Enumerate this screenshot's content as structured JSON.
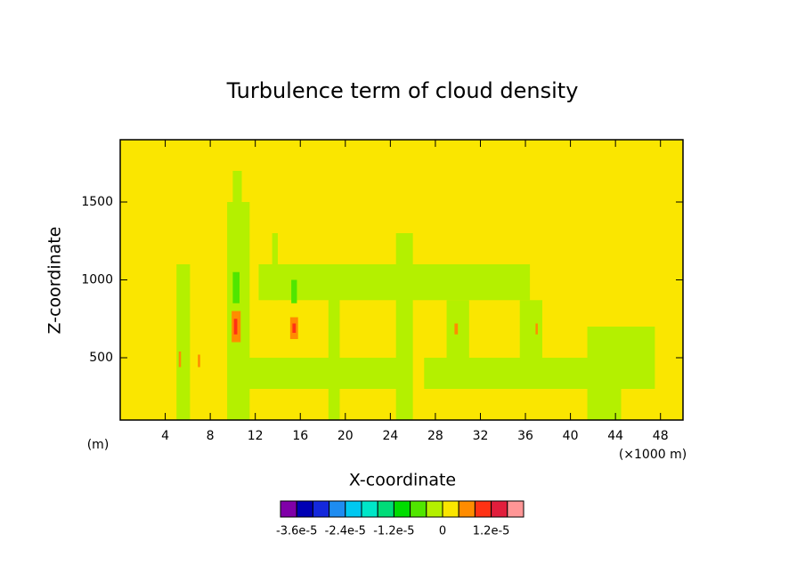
{
  "chart_data": {
    "type": "contour",
    "title": "Turbulence term of cloud density",
    "x_label": "X-coordinate",
    "y_label": "Z-coordinate",
    "y_unit": "(m)",
    "x_unit": "(×1000 m)",
    "xlim": [
      0,
      50
    ],
    "xticks": [
      4,
      8,
      12,
      16,
      20,
      24,
      28,
      32,
      36,
      40,
      44,
      48
    ],
    "ylim": [
      100,
      1900
    ],
    "yticks": [
      500,
      1000,
      1500
    ],
    "background_value": 2e-06,
    "levels": [
      -3.6e-05,
      -3.2e-05,
      -2.8e-05,
      -2.4e-05,
      -2e-05,
      -1.6e-05,
      -1.2e-05,
      -8e-06,
      -4e-06,
      0,
      4e-06,
      8e-06,
      1.2e-05,
      1.6e-05
    ],
    "level_labels": [
      {
        "value": -3.6e-05,
        "label": "-3.6e-5"
      },
      {
        "value": -2.4e-05,
        "label": "-2.4e-5"
      },
      {
        "value": -1.2e-05,
        "label": "-1.2e-5"
      },
      0,
      {
        "value": 1.2e-05,
        "label": "1.2e-5"
      }
    ],
    "colors": [
      "#8000a8",
      "#0000b4",
      "#1428dc",
      "#1e8cf0",
      "#00c8f0",
      "#00e6c8",
      "#00dc78",
      "#00dc00",
      "#50e600",
      "#b4f000",
      "#fae600",
      "#ff8c00",
      "#ff3214",
      "#e11e3c",
      "#ff9696"
    ],
    "patches": [
      {
        "x": [
          11,
          25
        ],
        "z": [
          300,
          500
        ],
        "value": -2e-06
      },
      {
        "x": [
          27,
          47.5
        ],
        "z": [
          300,
          500
        ],
        "value": -2e-06
      },
      {
        "x": [
          12.3,
          36.4
        ],
        "z": [
          870,
          1100
        ],
        "value": -2e-06
      },
      {
        "x": [
          5,
          6.2
        ],
        "z": [
          100,
          1100
        ],
        "value": -2e-06
      },
      {
        "x": [
          9.5,
          11.5
        ],
        "z": [
          100,
          1500
        ],
        "value": -2e-06
      },
      {
        "x": [
          10,
          10.8
        ],
        "z": [
          1500,
          1700
        ],
        "value": -2e-06
      },
      {
        "x": [
          13.5,
          14
        ],
        "z": [
          870,
          1300
        ],
        "value": -2e-06
      },
      {
        "x": [
          18.5,
          19.5
        ],
        "z": [
          100,
          900
        ],
        "value": -2e-06
      },
      {
        "x": [
          24.5,
          26
        ],
        "z": [
          100,
          1300
        ],
        "value": -2e-06
      },
      {
        "x": [
          41.5,
          44.5
        ],
        "z": [
          100,
          700
        ],
        "value": -2e-06
      },
      {
        "x": [
          44.5,
          47.5
        ],
        "z": [
          500,
          700
        ],
        "value": -2e-06
      },
      {
        "x": [
          29,
          31
        ],
        "z": [
          500,
          870
        ],
        "value": -2e-06
      },
      {
        "x": [
          35.5,
          37.5
        ],
        "z": [
          500,
          870
        ],
        "value": -2e-06
      },
      {
        "x": [
          10,
          10.6
        ],
        "z": [
          850,
          1050
        ],
        "value": -6e-06
      },
      {
        "x": [
          15.2,
          15.7
        ],
        "z": [
          850,
          1000
        ],
        "value": -6e-06
      },
      {
        "x": [
          9.9,
          10.7
        ],
        "z": [
          600,
          800
        ],
        "value": 6e-06
      },
      {
        "x": [
          10.1,
          10.4
        ],
        "z": [
          650,
          750
        ],
        "value": 1e-05
      },
      {
        "x": [
          15.1,
          15.8
        ],
        "z": [
          620,
          760
        ],
        "value": 6e-06
      },
      {
        "x": [
          15.3,
          15.6
        ],
        "z": [
          660,
          720
        ],
        "value": 1e-05
      },
      {
        "x": [
          5.2,
          5.4
        ],
        "z": [
          440,
          540
        ],
        "value": 6e-06
      },
      {
        "x": [
          6.9,
          7.1
        ],
        "z": [
          440,
          520
        ],
        "value": 6e-06
      },
      {
        "x": [
          29.7,
          30
        ],
        "z": [
          650,
          720
        ],
        "value": 6e-06
      },
      {
        "x": [
          36.9,
          37.1
        ],
        "z": [
          650,
          720
        ],
        "value": 6e-06
      }
    ]
  }
}
